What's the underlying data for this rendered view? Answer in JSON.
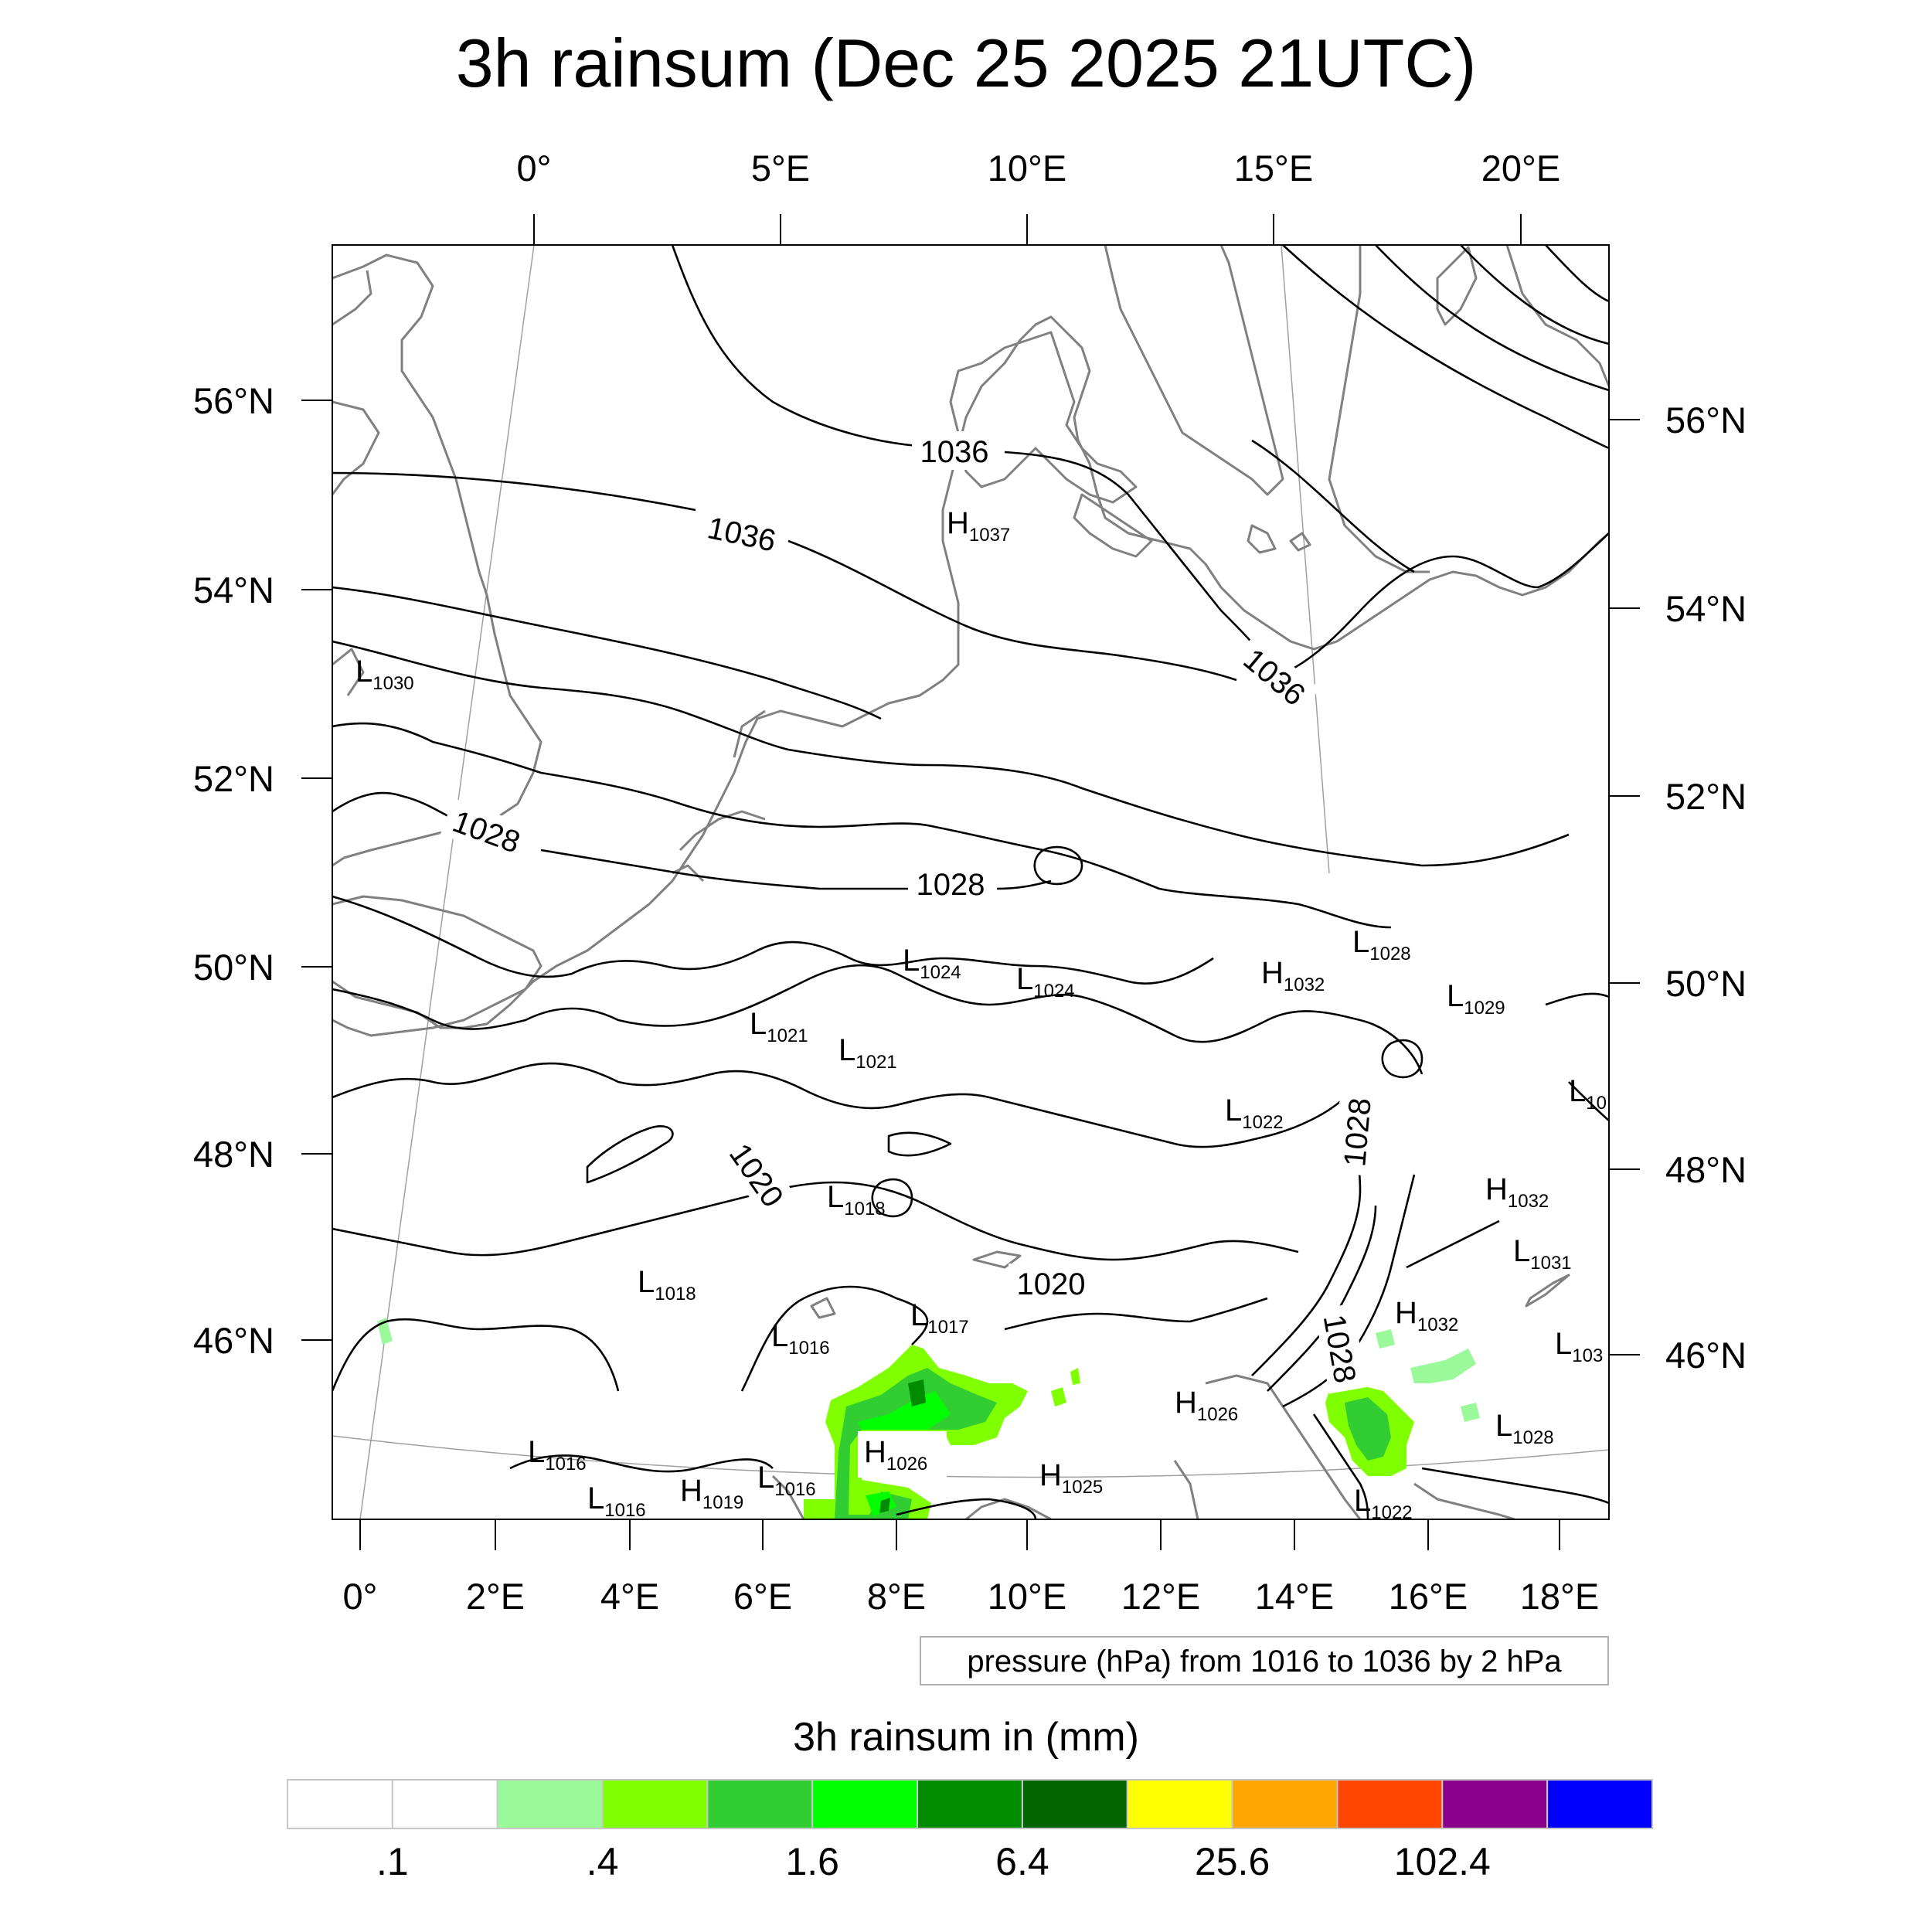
{
  "title": "3h rainsum (Dec 25 2025 21UTC)",
  "top_lon_labels": [
    "0°",
    "5°E",
    "10°E",
    "15°E",
    "20°E"
  ],
  "bottom_lon_labels": [
    "0°",
    "2°E",
    "4°E",
    "6°E",
    "8°E",
    "10°E",
    "12°E",
    "14°E",
    "16°E",
    "18°E"
  ],
  "left_lat_labels": [
    "56°N",
    "54°N",
    "52°N",
    "50°N",
    "48°N",
    "46°N"
  ],
  "right_lat_labels": [
    "56°N",
    "54°N",
    "52°N",
    "50°N",
    "48°N",
    "46°N"
  ],
  "contour_info": "pressure (hPa) from 1016 to 1036 by 2 hPa",
  "contour_labels": [
    "1036",
    "1036",
    "1036",
    "1028",
    "1028",
    "1028",
    "1028",
    "1020",
    "1020"
  ],
  "pressure_centers": [
    {
      "type": "H",
      "value": "1037"
    },
    {
      "type": "L",
      "value": "1030"
    },
    {
      "type": "L",
      "value": "1028"
    },
    {
      "type": "H",
      "value": "1032"
    },
    {
      "type": "L",
      "value": "1024"
    },
    {
      "type": "L",
      "value": "1024"
    },
    {
      "type": "L",
      "value": "1029"
    },
    {
      "type": "L",
      "value": "1021"
    },
    {
      "type": "L",
      "value": "1021"
    },
    {
      "type": "L",
      "value": "10"
    },
    {
      "type": "L",
      "value": "1022"
    },
    {
      "type": "L",
      "value": "1018"
    },
    {
      "type": "H",
      "value": "1032"
    },
    {
      "type": "L",
      "value": "1031"
    },
    {
      "type": "L",
      "value": "1018"
    },
    {
      "type": "L",
      "value": "1017"
    },
    {
      "type": "L",
      "value": "1016"
    },
    {
      "type": "H",
      "value": "1032"
    },
    {
      "type": "L",
      "value": "103"
    },
    {
      "type": "H",
      "value": "1026"
    },
    {
      "type": "L",
      "value": "1028"
    },
    {
      "type": "L",
      "value": "1016"
    },
    {
      "type": "H",
      "value": "1026"
    },
    {
      "type": "L",
      "value": "1016"
    },
    {
      "type": "H",
      "value": "1025"
    },
    {
      "type": "L",
      "value": "1016"
    },
    {
      "type": "H",
      "value": "1019"
    },
    {
      "type": "L",
      "value": "1022"
    }
  ],
  "colorbar": {
    "title": "3h rainsum in (mm)",
    "colors": [
      "#ffffff",
      "#ffffff",
      "#9afa9a",
      "#80ff00",
      "#32cd32",
      "#00ff00",
      "#008b00",
      "#006400",
      "#ffff00",
      "#ffa500",
      "#ff4500",
      "#8b008b",
      "#0000ff"
    ],
    "tick_labels": [
      ".1",
      ".4",
      "1.6",
      "6.4",
      "25.6",
      "102.4"
    ]
  },
  "colors": {
    "coastline": "#808080",
    "contour": "#000000",
    "graticule": "#a0a0a0"
  }
}
